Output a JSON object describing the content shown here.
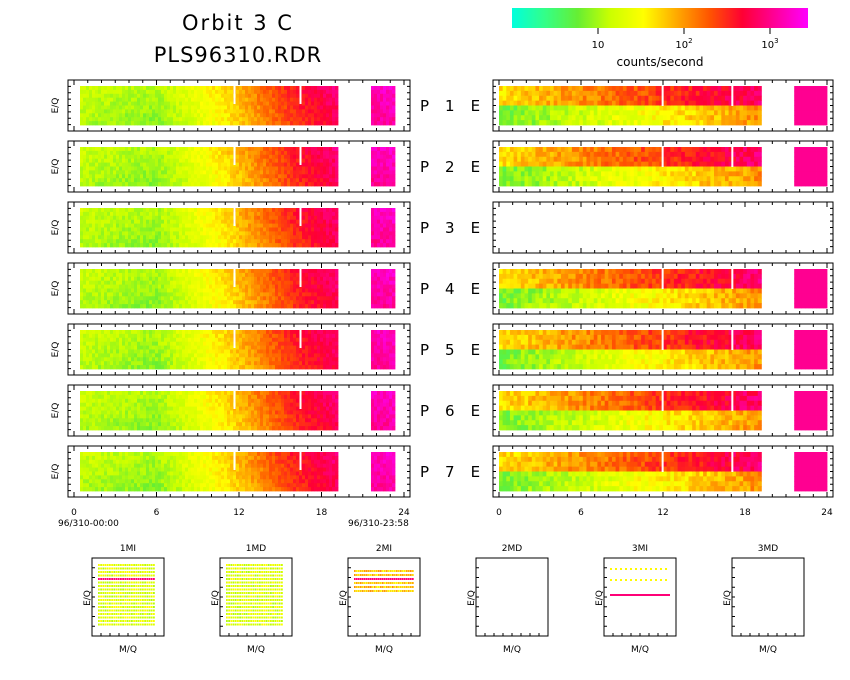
{
  "title_line1": "Orbit 3 C",
  "title_line2": "PLS96310.RDR",
  "colorbar": {
    "label": "counts/second",
    "ticks": [
      {
        "base": "10",
        "exp": ""
      },
      {
        "base": "10",
        "exp": "2"
      },
      {
        "base": "10",
        "exp": "3"
      }
    ],
    "colors": [
      "#00ffdd",
      "#33ff88",
      "#66ee33",
      "#ccff00",
      "#ffff00",
      "#ffaa00",
      "#ff5500",
      "#ff0033",
      "#ff0099",
      "#ff00ff"
    ]
  },
  "chart_data": {
    "type": "heatmap",
    "description_panels": "Seven proton (P) and seven electron (E) spectrogram rows versus time of day",
    "rows": [
      "P 1 E",
      "P 2 E",
      "P 3 E",
      "P 4 E",
      "P 5 E",
      "P 6 E",
      "P 7 E"
    ],
    "row_labels": [
      {
        "p": "P",
        "n": "1",
        "e": "E"
      },
      {
        "p": "P",
        "n": "2",
        "e": "E"
      },
      {
        "p": "P",
        "n": "3",
        "e": "E"
      },
      {
        "p": "P",
        "n": "4",
        "e": "E"
      },
      {
        "p": "P",
        "n": "5",
        "e": "E"
      },
      {
        "p": "P",
        "n": "6",
        "e": "E"
      },
      {
        "p": "P",
        "n": "7",
        "e": "E"
      }
    ],
    "ylabel": "E/Q",
    "x_ticks": [
      "0",
      "6",
      "12",
      "18",
      "24"
    ],
    "xlim": [
      0,
      24
    ],
    "start_label": "96/310-00:00",
    "end_label": "96/310-23:58",
    "e_has_data": [
      true,
      true,
      false,
      true,
      true,
      true,
      true
    ],
    "log_rate_trend_p": [
      {
        "hour": 0,
        "level": 0.35
      },
      {
        "hour": 6,
        "level": 0.3
      },
      {
        "hour": 11,
        "level": 0.5
      },
      {
        "hour": 16,
        "level": 0.75
      },
      {
        "hour": 19,
        "level": 0.85
      },
      {
        "hour": 21.5,
        "level": 0.92
      },
      {
        "hour": 24,
        "level": 0.95
      }
    ],
    "data_gaps_hours": [
      [
        19.2,
        21.5
      ]
    ],
    "small_panels": [
      {
        "name": "1MI",
        "xlabel": "M/Q",
        "ylabel": "E/Q",
        "filled": "grid"
      },
      {
        "name": "1MD",
        "xlabel": "M/Q",
        "ylabel": "E/Q",
        "filled": "grid"
      },
      {
        "name": "2MI",
        "xlabel": "M/Q",
        "ylabel": "E/Q",
        "filled": "band"
      },
      {
        "name": "2MD",
        "xlabel": "M/Q",
        "ylabel": "E/Q",
        "filled": "none"
      },
      {
        "name": "3MI",
        "xlabel": "M/Q",
        "ylabel": "E/Q",
        "filled": "line"
      },
      {
        "name": "3MD",
        "xlabel": "M/Q",
        "ylabel": "E/Q",
        "filled": "none"
      }
    ]
  }
}
